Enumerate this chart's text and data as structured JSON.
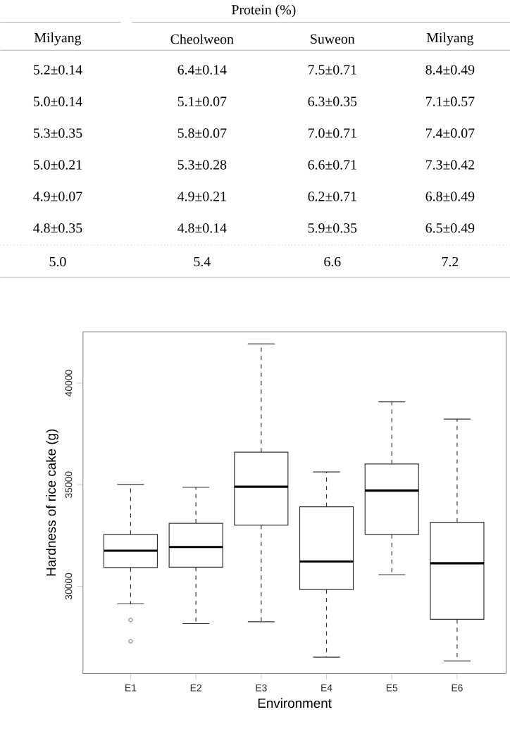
{
  "chart_data": [
    {
      "type": "other",
      "title": "Protein (%)",
      "categories": [
        "Milyang",
        "Cheolweon",
        "Suweon",
        "Milyang"
      ],
      "annotations": [
        "5.2±0.14",
        "6.4±0.14",
        "7.5±0.71",
        "8.4±0.49",
        "5.0±0.14",
        "5.1±0.07",
        "6.3±0.35",
        "7.1±0.57",
        "5.3±0.35",
        "5.8±0.07",
        "7.0±0.71",
        "7.4±0.07",
        "5.0±0.21",
        "5.3±0.28",
        "6.6±0.71",
        "7.3±0.42",
        "4.9±0.07",
        "4.9±0.21",
        "6.2±0.71",
        "6.8±0.49",
        "4.8±0.35",
        "4.8±0.14",
        "5.9±0.35",
        "6.5±0.49",
        "5.0",
        "5.4",
        "6.6",
        "7.2"
      ]
    },
    {
      "type": "box",
      "xlabel": "Environment",
      "ylabel": "Hardness of rice cake (g)",
      "categories": [
        "E1",
        "E2",
        "E3",
        "E4",
        "E5",
        "E6"
      ],
      "ylim": [
        25700,
        42530
      ],
      "yticks": [
        30000,
        35000,
        40000
      ],
      "boxes": [
        {
          "low": 29130,
          "q1": 30920,
          "median": 31750,
          "q3": 32550,
          "high": 35010,
          "outliers": [
            28340,
            27290
          ]
        },
        {
          "low": 28160,
          "q1": 30940,
          "median": 31930,
          "q3": 33100,
          "high": 34870
        },
        {
          "low": 28250,
          "q1": 33010,
          "median": 34900,
          "q3": 36600,
          "high": 41930
        },
        {
          "low": 26510,
          "q1": 29840,
          "median": 31220,
          "q3": 33910,
          "high": 35630
        },
        {
          "low": 30570,
          "q1": 32550,
          "median": 34710,
          "q3": 36020,
          "high": 39080
        },
        {
          "low": 26320,
          "q1": 28370,
          "median": 31130,
          "q3": 33150,
          "high": 38230
        }
      ]
    }
  ]
}
